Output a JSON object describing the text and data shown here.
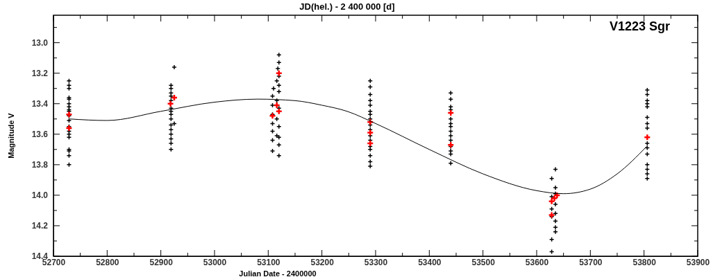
{
  "chart_data": {
    "type": "scatter",
    "xlabel": "Julian Date - 2400000",
    "x2label": "JD(hel.) - 2 400 000 [d]",
    "ylabel": "Magnitude V",
    "annotations": [
      "V1223 Sgr"
    ],
    "xlim": [
      52700,
      53900
    ],
    "xticks": [
      52700,
      {
        "value": 52750,
        "label": null
      },
      52800,
      {
        "value": 52850,
        "label": null
      },
      52900,
      {
        "value": 52950,
        "label": null
      },
      53000,
      {
        "value": 53050,
        "label": null
      },
      53100,
      {
        "value": 53150,
        "label": null
      },
      53200,
      {
        "value": 53250,
        "label": null
      },
      53300,
      {
        "value": 53350,
        "label": null
      },
      53400,
      {
        "value": 53450,
        "label": null
      },
      53500,
      {
        "value": 53550,
        "label": null
      },
      53600,
      {
        "value": 53650,
        "label": null
      },
      53700,
      {
        "value": 53750,
        "label": null
      },
      53800,
      {
        "value": 53850,
        "label": null
      },
      53900
    ],
    "ylim": [
      14.4,
      12.82
    ],
    "yticks": [
      {
        "value": 12.9,
        "label": null
      },
      {
        "value": 13.0,
        "label": "13.0"
      },
      {
        "value": 13.1,
        "label": null
      },
      {
        "value": 13.2,
        "label": "13.2"
      },
      {
        "value": 13.3,
        "label": null
      },
      {
        "value": 13.4,
        "label": "13.4"
      },
      {
        "value": 13.5,
        "label": null
      },
      {
        "value": 13.6,
        "label": "13.6"
      },
      {
        "value": 13.7,
        "label": null
      },
      {
        "value": 13.8,
        "label": "13.8"
      },
      {
        "value": 13.9,
        "label": null
      },
      {
        "value": 14.0,
        "label": "14.0"
      },
      {
        "value": 14.1,
        "label": null
      },
      {
        "value": 14.2,
        "label": "14.2"
      },
      {
        "value": 14.3,
        "label": null
      },
      {
        "value": 14.4,
        "label": "14.4"
      }
    ],
    "grid": false,
    "marker": "cross",
    "series": [
      {
        "color": "#000000",
        "x": [
          52729,
          52729,
          52729,
          52729,
          52729,
          52729,
          52729,
          52729,
          52729,
          52729,
          52729,
          52729,
          52729,
          52729,
          52729,
          52729,
          52729,
          52729,
          52729,
          52919,
          52919,
          52925,
          52919,
          52919,
          52919,
          52919,
          52919,
          52919,
          52919,
          52925,
          52919,
          52919,
          52919,
          52919,
          52919,
          52919,
          53120,
          53120,
          53118,
          53120,
          53116,
          53120,
          53110,
          53120,
          53108,
          53116,
          53108,
          53120,
          53108,
          53116,
          53108,
          53120,
          53108,
          53116,
          53108,
          53120,
          53120,
          53108,
          53120,
          53290,
          53290,
          53290,
          53290,
          53290,
          53290,
          53290,
          53290,
          53290,
          53290,
          53290,
          53290,
          53290,
          53290,
          53290,
          53290,
          53290,
          53440,
          53440,
          53440,
          53440,
          53440,
          53440,
          53440,
          53440,
          53440,
          53440,
          53440,
          53440,
          53440,
          53440,
          53635,
          53628,
          53635,
          53635,
          53628,
          53635,
          53628,
          53635,
          53628,
          53635,
          53635,
          53635,
          53628,
          53628,
          53806,
          53806,
          53806,
          53806,
          53806,
          53806,
          53806,
          53806,
          53806,
          53806,
          53806,
          53806,
          53806,
          53806,
          53806
        ],
        "values": [
          13.25,
          13.28,
          13.3,
          13.36,
          13.37,
          13.4,
          13.42,
          13.44,
          13.45,
          13.48,
          13.51,
          13.55,
          13.58,
          13.6,
          13.62,
          13.7,
          13.71,
          13.74,
          13.8,
          13.28,
          13.3,
          13.16,
          13.33,
          13.35,
          13.38,
          13.43,
          13.45,
          13.47,
          13.5,
          13.53,
          13.54,
          13.57,
          13.6,
          13.63,
          13.66,
          13.7,
          13.08,
          13.13,
          13.17,
          13.22,
          13.25,
          13.28,
          13.3,
          13.32,
          13.35,
          13.38,
          13.41,
          13.43,
          13.47,
          13.5,
          13.53,
          13.55,
          13.58,
          13.61,
          13.64,
          13.67,
          13.62,
          13.71,
          13.74,
          13.25,
          13.29,
          13.34,
          13.38,
          13.41,
          13.45,
          13.47,
          13.5,
          13.54,
          13.57,
          13.61,
          13.64,
          13.68,
          13.7,
          13.74,
          13.78,
          13.81,
          13.33,
          13.37,
          13.42,
          13.44,
          13.5,
          13.53,
          13.55,
          13.58,
          13.61,
          13.64,
          13.68,
          13.71,
          13.73,
          13.79,
          13.83,
          13.89,
          13.95,
          13.99,
          14.01,
          14.06,
          14.09,
          14.12,
          14.14,
          14.17,
          14.21,
          14.24,
          14.29,
          14.37,
          13.31,
          13.34,
          13.38,
          13.4,
          13.42,
          13.49,
          13.53,
          13.56,
          13.66,
          13.69,
          13.73,
          13.8,
          13.83,
          13.86,
          13.89
        ]
      },
      {
        "color": "#ff0000",
        "x": [
          52729,
          52729,
          52925,
          52918,
          53120,
          53116,
          53120,
          53108,
          53290,
          53290,
          53290,
          53440,
          53440,
          53638,
          53633,
          53628,
          53628,
          53806
        ],
        "values": [
          13.47,
          13.56,
          13.36,
          13.4,
          13.2,
          13.41,
          13.45,
          13.48,
          13.52,
          13.59,
          13.66,
          13.46,
          13.67,
          14.0,
          14.02,
          14.04,
          14.13,
          13.62
        ]
      },
      {
        "type": "line",
        "color": "#000000",
        "marker": "none",
        "x": [
          52730,
          52800,
          52900,
          53000,
          53080,
          53150,
          53200,
          53247,
          53300,
          53400,
          53500,
          53600,
          53650,
          53700,
          53750,
          53805
        ],
        "values": [
          13.5,
          13.51,
          13.45,
          13.39,
          13.37,
          13.38,
          13.41,
          13.45,
          13.53,
          13.7,
          13.86,
          13.97,
          13.99,
          13.96,
          13.86,
          13.68
        ]
      }
    ]
  }
}
